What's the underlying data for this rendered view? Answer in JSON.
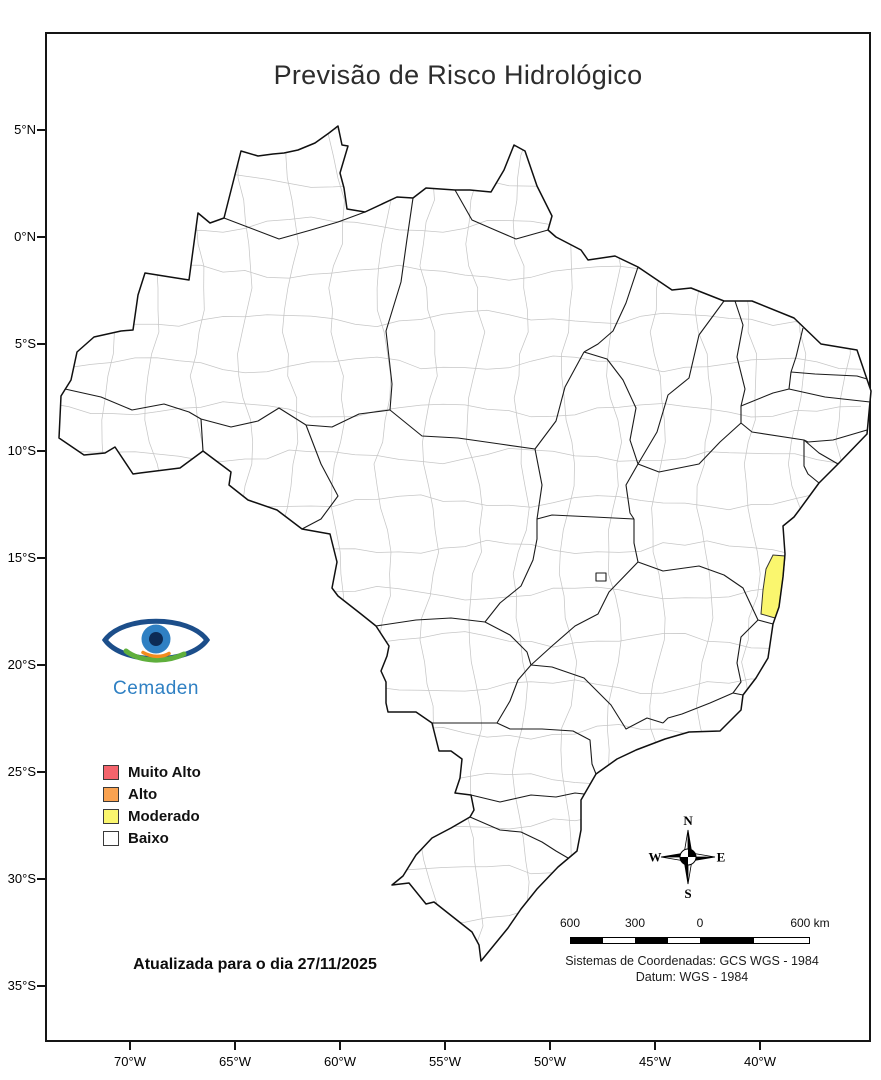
{
  "title": "Previsão de Risco Hidrológico",
  "logo": {
    "text": "Cemaden"
  },
  "legend": {
    "items": [
      {
        "label": "Muito Alto",
        "color": "#F4646C"
      },
      {
        "label": "Alto",
        "color": "#F9A250"
      },
      {
        "label": "Moderado",
        "color": "#FAF66E"
      },
      {
        "label": "Baixo",
        "color": "#FFFFFF"
      }
    ]
  },
  "update_note": "Atualizada para o dia 27/11/2025",
  "compass": {
    "n": "N",
    "e": "E",
    "s": "S",
    "w": "W"
  },
  "scale_bar": {
    "labels": [
      "600",
      "300",
      "0",
      "600 km"
    ]
  },
  "coordinate_system": {
    "line1": "Sistemas de Coordenadas: GCS WGS - 1984",
    "line2": "Datum: WGS - 1984"
  },
  "axes": {
    "latitude_labels": [
      "5°N",
      "0°N",
      "5°S",
      "10°S",
      "15°S",
      "20°S",
      "25°S",
      "30°S",
      "35°S"
    ],
    "longitude_labels": [
      "70°W",
      "65°W",
      "60°W",
      "55°W",
      "50°W",
      "45°W",
      "40°W"
    ]
  },
  "map": {
    "country": "Brasil",
    "highlighted_region": {
      "risk_level": "Moderado",
      "color": "#FAF66E"
    }
  }
}
